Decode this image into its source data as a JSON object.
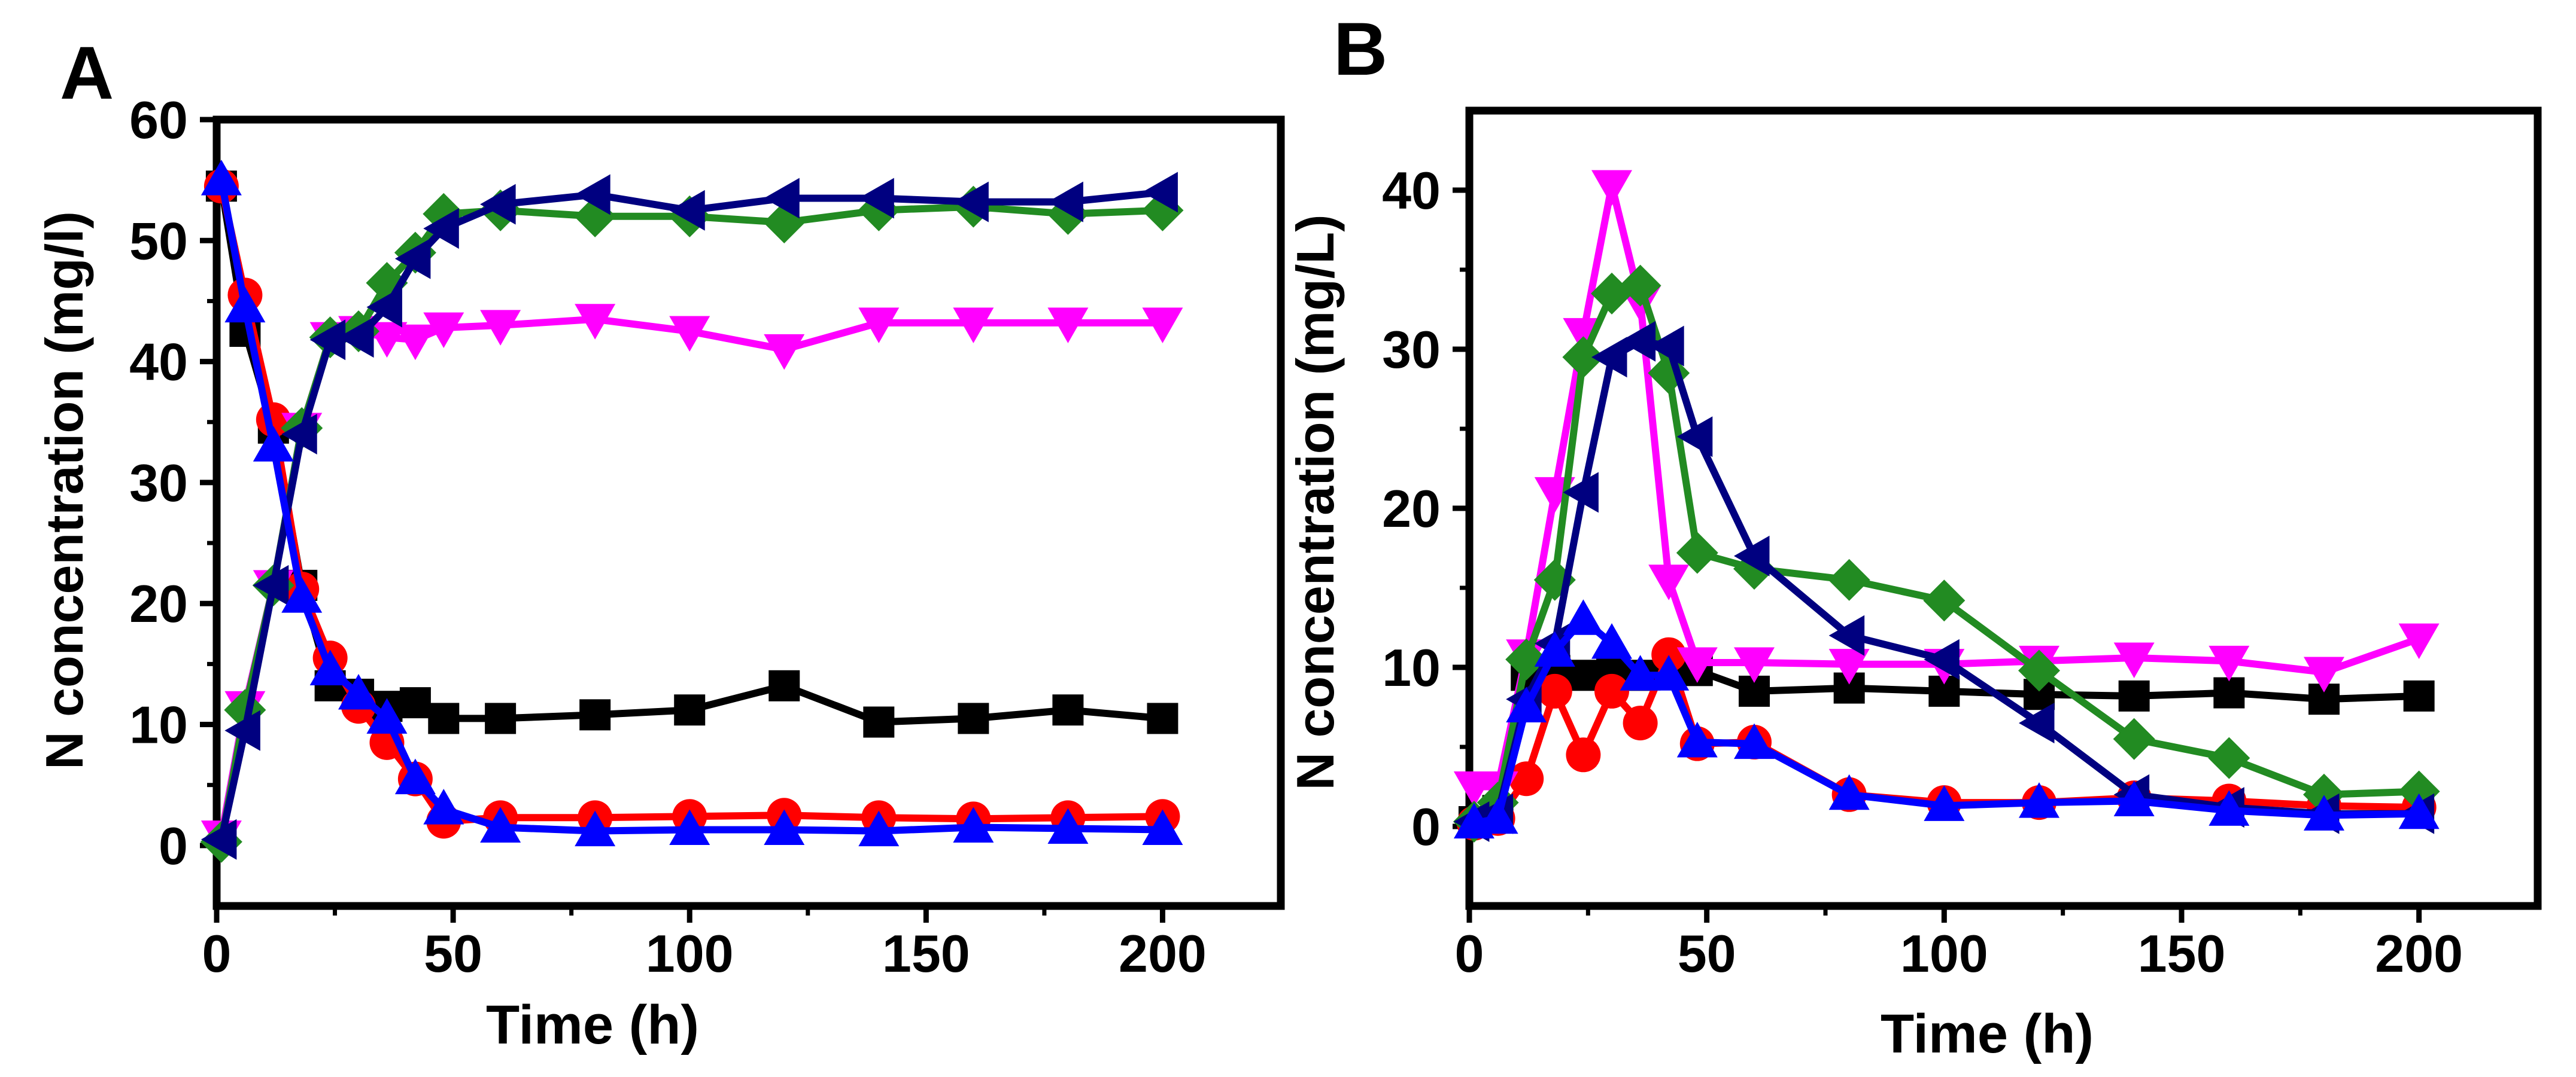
{
  "colors": {
    "black": "#000000",
    "red": "#ff0000",
    "blue": "#0000ff",
    "green": "#228b22",
    "magenta": "#ff00ff",
    "navy": "#000080"
  },
  "chart_data": [
    {
      "panel_label": "A",
      "type": "line",
      "xlabel": "Time (h)",
      "ylabel": "N concentration (mg/l)",
      "xlim": [
        0,
        225
      ],
      "ylim": [
        -5,
        60
      ],
      "xticks": [
        0,
        50,
        100,
        150,
        200
      ],
      "yticks": [
        0,
        10,
        20,
        30,
        40,
        50,
        60
      ],
      "xtick_labels": [
        "0",
        "50",
        "100",
        "150",
        "200"
      ],
      "ytick_labels": [
        "0",
        "10",
        "20",
        "30",
        "40",
        "50",
        "60"
      ],
      "grid": false,
      "series": [
        {
          "name": "black-square",
          "marker": "square",
          "color": "#000000",
          "x": [
            1,
            6,
            12,
            18,
            24,
            30,
            36,
            42,
            48,
            60,
            80,
            100,
            120,
            140,
            160,
            180,
            200
          ],
          "y": [
            54.5,
            42.5,
            34.5,
            21.5,
            13.2,
            12.5,
            11.5,
            11.8,
            10.5,
            10.5,
            10.8,
            11.2,
            13.2,
            10.2,
            10.5,
            11.2,
            10.5
          ]
        },
        {
          "name": "red-circle",
          "marker": "circle",
          "color": "#ff0000",
          "x": [
            1,
            6,
            12,
            18,
            24,
            30,
            36,
            42,
            48,
            60,
            80,
            100,
            120,
            140,
            160,
            180,
            200
          ],
          "y": [
            54.5,
            45.5,
            35.2,
            21.2,
            15.5,
            11.5,
            8.5,
            5.5,
            2.0,
            2.3,
            2.3,
            2.4,
            2.5,
            2.3,
            2.2,
            2.3,
            2.4
          ]
        },
        {
          "name": "magenta-triangle-down",
          "marker": "triangle-down",
          "color": "#ff00ff",
          "x": [
            1,
            6,
            12,
            18,
            24,
            30,
            36,
            42,
            48,
            60,
            80,
            100,
            120,
            140,
            160,
            180,
            200
          ],
          "y": [
            0.8,
            11.5,
            21.5,
            34.5,
            42.0,
            42.5,
            42.0,
            41.8,
            42.8,
            43.0,
            43.5,
            42.5,
            41.0,
            43.2,
            43.2,
            43.2,
            43.2
          ]
        },
        {
          "name": "green-diamond",
          "marker": "diamond",
          "color": "#228b22",
          "x": [
            1,
            6,
            12,
            18,
            24,
            30,
            36,
            42,
            48,
            60,
            80,
            100,
            120,
            140,
            160,
            180,
            200
          ],
          "y": [
            0.3,
            11.2,
            21.5,
            34.5,
            42.0,
            42.5,
            46.5,
            49.0,
            52.2,
            52.5,
            52.0,
            52.0,
            51.5,
            52.5,
            52.8,
            52.2,
            52.5
          ]
        },
        {
          "name": "navy-triangle-left",
          "marker": "triangle-left",
          "color": "#000080",
          "x": [
            1,
            6,
            12,
            18,
            24,
            30,
            36,
            42,
            48,
            60,
            80,
            100,
            120,
            140,
            160,
            180,
            200
          ],
          "y": [
            0.5,
            9.5,
            21.5,
            34.0,
            41.8,
            42.0,
            44.5,
            48.5,
            51.0,
            53.0,
            53.8,
            52.5,
            53.5,
            53.5,
            53.2,
            53.2,
            54.0
          ]
        },
        {
          "name": "blue-triangle-up",
          "marker": "triangle-up",
          "color": "#0000ff",
          "x": [
            1,
            6,
            12,
            18,
            24,
            30,
            36,
            42,
            48,
            60,
            80,
            100,
            120,
            140,
            160,
            180,
            200
          ],
          "y": [
            55.0,
            44.5,
            33.0,
            20.5,
            14.5,
            12.5,
            10.5,
            5.5,
            3.0,
            1.5,
            1.2,
            1.3,
            1.3,
            1.2,
            1.5,
            1.4,
            1.3
          ]
        }
      ]
    },
    {
      "panel_label": "B",
      "type": "line",
      "xlabel": "Time (h)",
      "ylabel": "N concentration (mg/L)",
      "xlim": [
        0,
        225
      ],
      "ylim": [
        -5,
        45
      ],
      "xticks": [
        0,
        50,
        100,
        150,
        200
      ],
      "yticks": [
        0,
        10,
        20,
        30,
        40
      ],
      "xtick_labels": [
        "0",
        "50",
        "100",
        "150",
        "200"
      ],
      "ytick_labels": [
        "0",
        "10",
        "20",
        "30",
        "40"
      ],
      "grid": false,
      "series": [
        {
          "name": "black-square",
          "marker": "square",
          "color": "#000000",
          "x": [
            1,
            6,
            12,
            18,
            24,
            30,
            36,
            42,
            48,
            60,
            80,
            100,
            120,
            140,
            160,
            180,
            200
          ],
          "y": [
            0.3,
            1.0,
            9.5,
            9.8,
            9.5,
            9.8,
            9.5,
            9.8,
            9.8,
            8.5,
            8.7,
            8.5,
            8.3,
            8.2,
            8.4,
            8.0,
            8.2
          ]
        },
        {
          "name": "red-circle",
          "marker": "circle",
          "color": "#ff0000",
          "x": [
            1,
            6,
            12,
            18,
            24,
            30,
            36,
            42,
            48,
            60,
            80,
            100,
            120,
            140,
            160,
            180,
            200
          ],
          "y": [
            0.2,
            0.5,
            3.0,
            8.5,
            4.5,
            8.5,
            6.5,
            10.8,
            5.2,
            5.3,
            2.0,
            1.5,
            1.5,
            1.8,
            1.6,
            1.3,
            1.2
          ]
        },
        {
          "name": "magenta-triangle-down",
          "marker": "triangle-down",
          "color": "#ff00ff",
          "x": [
            1,
            6,
            12,
            18,
            24,
            30,
            36,
            42,
            48,
            60,
            80,
            100,
            120,
            140,
            160,
            180,
            200
          ],
          "y": [
            2.5,
            2.5,
            10.8,
            21.0,
            31.0,
            40.3,
            33.0,
            15.5,
            10.3,
            10.3,
            10.2,
            10.2,
            10.4,
            10.6,
            10.4,
            9.7,
            11.8
          ]
        },
        {
          "name": "green-diamond",
          "marker": "diamond",
          "color": "#228b22",
          "x": [
            1,
            6,
            12,
            18,
            24,
            30,
            36,
            42,
            48,
            60,
            80,
            100,
            120,
            140,
            160,
            180,
            200
          ],
          "y": [
            0.3,
            1.5,
            10.5,
            15.5,
            29.5,
            33.5,
            34.0,
            28.5,
            17.2,
            16.2,
            15.5,
            14.2,
            9.8,
            5.5,
            4.3,
            2.0,
            2.2
          ]
        },
        {
          "name": "navy-triangle-left",
          "marker": "triangle-left",
          "color": "#000080",
          "x": [
            1,
            6,
            12,
            18,
            24,
            30,
            36,
            42,
            48,
            60,
            80,
            100,
            120,
            140,
            160,
            180,
            200
          ],
          "y": [
            0.3,
            0.8,
            8.0,
            11.5,
            21.0,
            29.5,
            30.5,
            30.2,
            24.5,
            17.0,
            12.0,
            10.5,
            6.5,
            2.0,
            1.2,
            0.8,
            0.8
          ]
        },
        {
          "name": "blue-triangle-up",
          "marker": "triangle-up",
          "color": "#0000ff",
          "x": [
            1,
            6,
            12,
            18,
            24,
            30,
            36,
            42,
            48,
            60,
            80,
            100,
            120,
            140,
            160,
            180,
            200
          ],
          "y": [
            0.2,
            0.5,
            7.5,
            11.0,
            13.0,
            11.5,
            9.5,
            9.5,
            5.3,
            5.2,
            2.0,
            1.3,
            1.5,
            1.6,
            1.0,
            0.7,
            0.8
          ]
        }
      ]
    }
  ]
}
